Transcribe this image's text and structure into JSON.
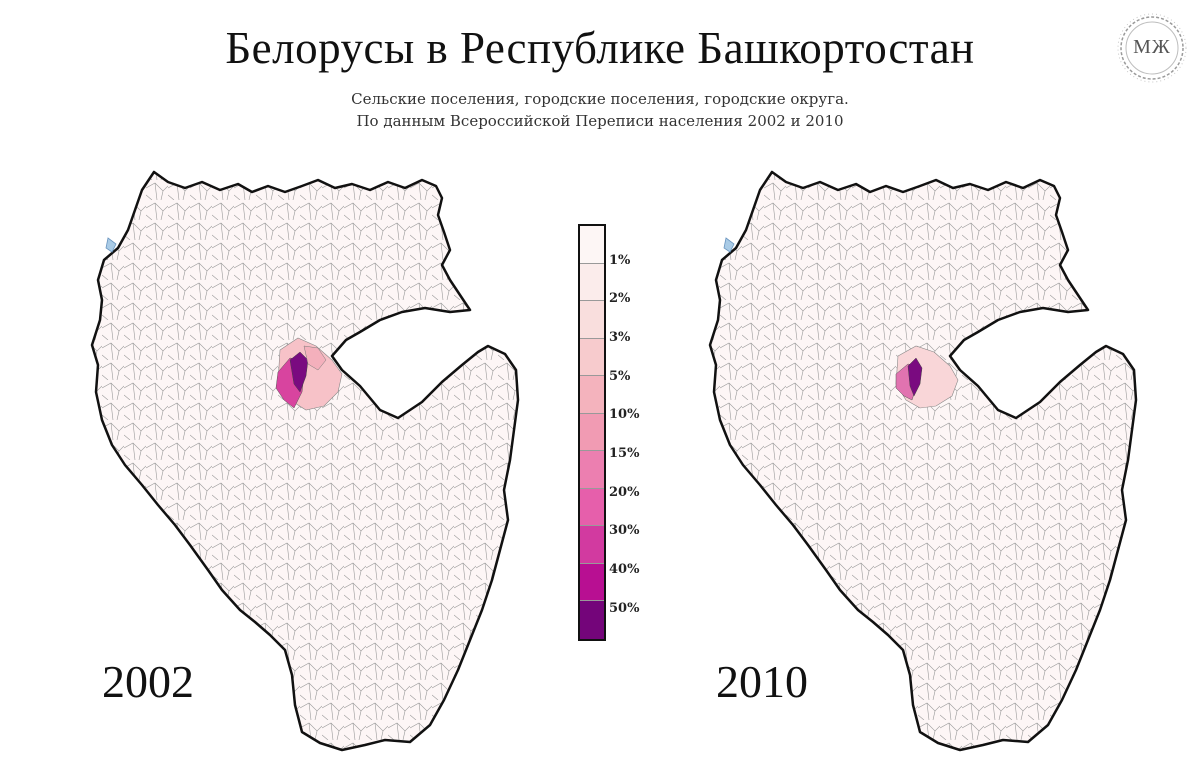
{
  "title": "Белорусы в Республике Башкортостан",
  "subtitle_line1": "Сельские поселения, городские поселения, городские округа.",
  "subtitle_line2": "По данным Всероссийской Переписи населения  2002 и 2010",
  "logo_text": "МЖ",
  "maps": [
    {
      "year": "2002"
    },
    {
      "year": "2010"
    }
  ],
  "legend": {
    "labels": [
      "1%",
      "2%",
      "3%",
      "5%",
      "10%",
      "15%",
      "20%",
      "30%",
      "40%",
      "50%"
    ],
    "colors": [
      "#fdf6f5",
      "#fbeceb",
      "#f9dedd",
      "#f7cbcd",
      "#f4b3bd",
      "#f19bb3",
      "#ec7fb0",
      "#e65fab",
      "#d23aa0",
      "#b80f92",
      "#74057a"
    ]
  }
}
